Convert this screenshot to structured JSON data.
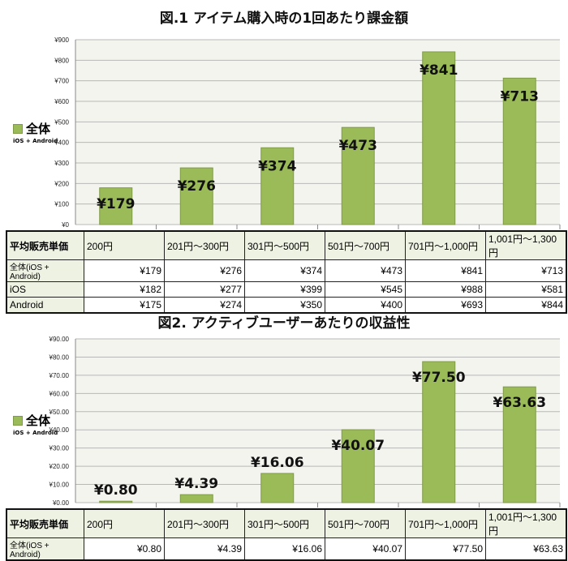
{
  "chart_data": [
    {
      "type": "bar",
      "title": "図.1 アイテム購入時の1回あたり課金額",
      "legend": {
        "label": "全体",
        "sub": "iOS + Android",
        "placement": "left"
      },
      "categories": [
        "200円",
        "201円～300円",
        "301円～500円",
        "501円～700円",
        "701円～1,000円",
        "1,001円～1,300円"
      ],
      "values": [
        179,
        276,
        374,
        473,
        841,
        713
      ],
      "value_labels": [
        "¥179",
        "¥276",
        "¥374",
        "¥473",
        "¥841",
        "¥713"
      ],
      "ylim": [
        0,
        900
      ],
      "yticks": [
        "¥0",
        "¥100",
        "¥200",
        "¥300",
        "¥400",
        "¥500",
        "¥600",
        "¥700",
        "¥800",
        "¥900"
      ],
      "grid": true,
      "table": {
        "header": "平均販売単価",
        "rows": [
          {
            "label": "全体(iOS + Android)",
            "values": [
              "¥179",
              "¥276",
              "¥374",
              "¥473",
              "¥841",
              "¥713"
            ]
          },
          {
            "label": "iOS",
            "values": [
              "¥182",
              "¥277",
              "¥399",
              "¥545",
              "¥988",
              "¥581"
            ]
          },
          {
            "label": "Android",
            "values": [
              "¥175",
              "¥274",
              "¥350",
              "¥400",
              "¥693",
              "¥844"
            ]
          }
        ]
      }
    },
    {
      "type": "bar",
      "title": "図2. アクティブユーザーあたりの収益性",
      "legend": {
        "label": "全体",
        "sub": "iOS + Android",
        "placement": "left"
      },
      "categories": [
        "200円",
        "201円～300円",
        "301円～500円",
        "501円～700円",
        "701円～1,000円",
        "1,001円～1,300円"
      ],
      "values": [
        0.8,
        4.39,
        16.06,
        40.07,
        77.5,
        63.63
      ],
      "value_labels": [
        "¥0.80",
        "¥4.39",
        "¥16.06",
        "¥40.07",
        "¥77.50",
        "¥63.63"
      ],
      "ylim": [
        0,
        90
      ],
      "yticks": [
        "¥0.00",
        "¥10.00",
        "¥20.00",
        "¥30.00",
        "¥40.00",
        "¥50.00",
        "¥60.00",
        "¥70.00",
        "¥80.00",
        "¥90.00"
      ],
      "grid": true,
      "table": {
        "header": "平均販売単価",
        "rows": [
          {
            "label": "全体(iOS + Android)",
            "values": [
              "¥0.80",
              "¥4.39",
              "¥16.06",
              "¥40.07",
              "¥77.50",
              "¥63.63"
            ]
          }
        ]
      }
    }
  ],
  "colors": {
    "bar": "#9bbb59",
    "bar_border": "#7f9a48",
    "plot_bg": "#f3f4ee",
    "grid": "#b8b8b8"
  }
}
